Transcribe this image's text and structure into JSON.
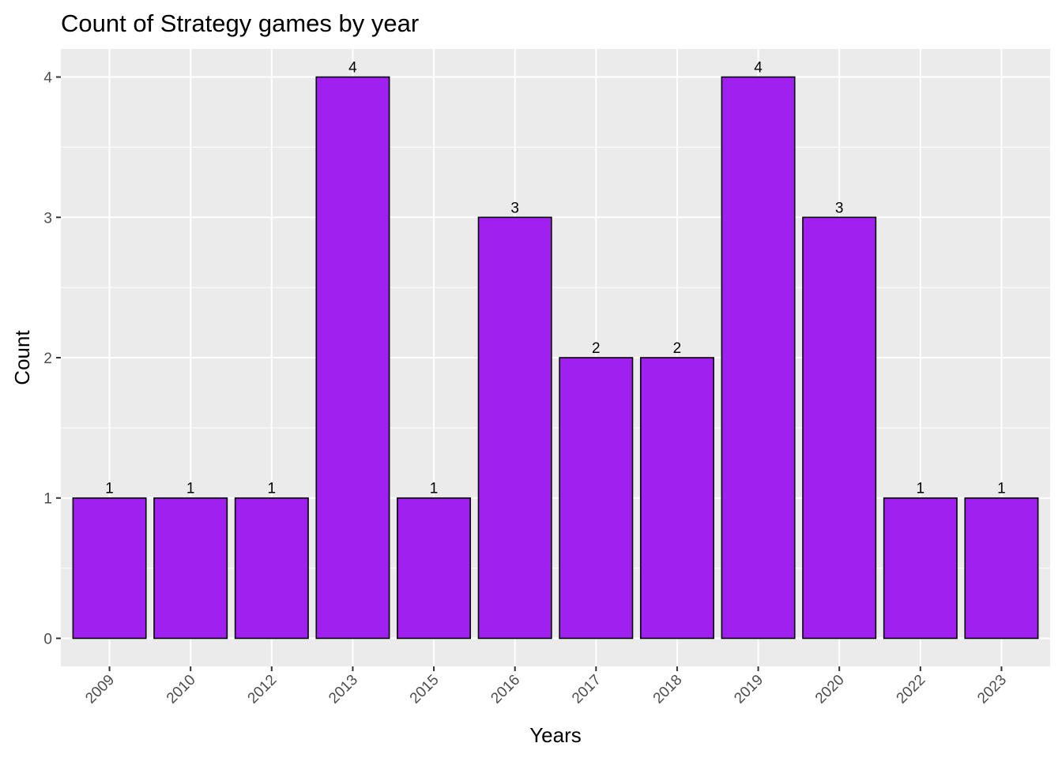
{
  "chart_data": {
    "type": "bar",
    "title": "Count of Strategy games by year",
    "xlabel": "Years",
    "ylabel": "Count",
    "categories": [
      "2009",
      "2010",
      "2012",
      "2013",
      "2015",
      "2016",
      "2017",
      "2018",
      "2019",
      "2020",
      "2022",
      "2023"
    ],
    "values": [
      1,
      1,
      1,
      4,
      1,
      3,
      2,
      2,
      4,
      3,
      1,
      1
    ],
    "yticks": [
      0,
      1,
      2,
      3,
      4
    ],
    "ylim": [
      -0.2,
      4.2
    ],
    "grid": true,
    "bar_fill": "#A020F0",
    "bar_outline": "#000000",
    "panel_background": "#EBEBEB",
    "x_tick_rotation": "45 degrees"
  }
}
